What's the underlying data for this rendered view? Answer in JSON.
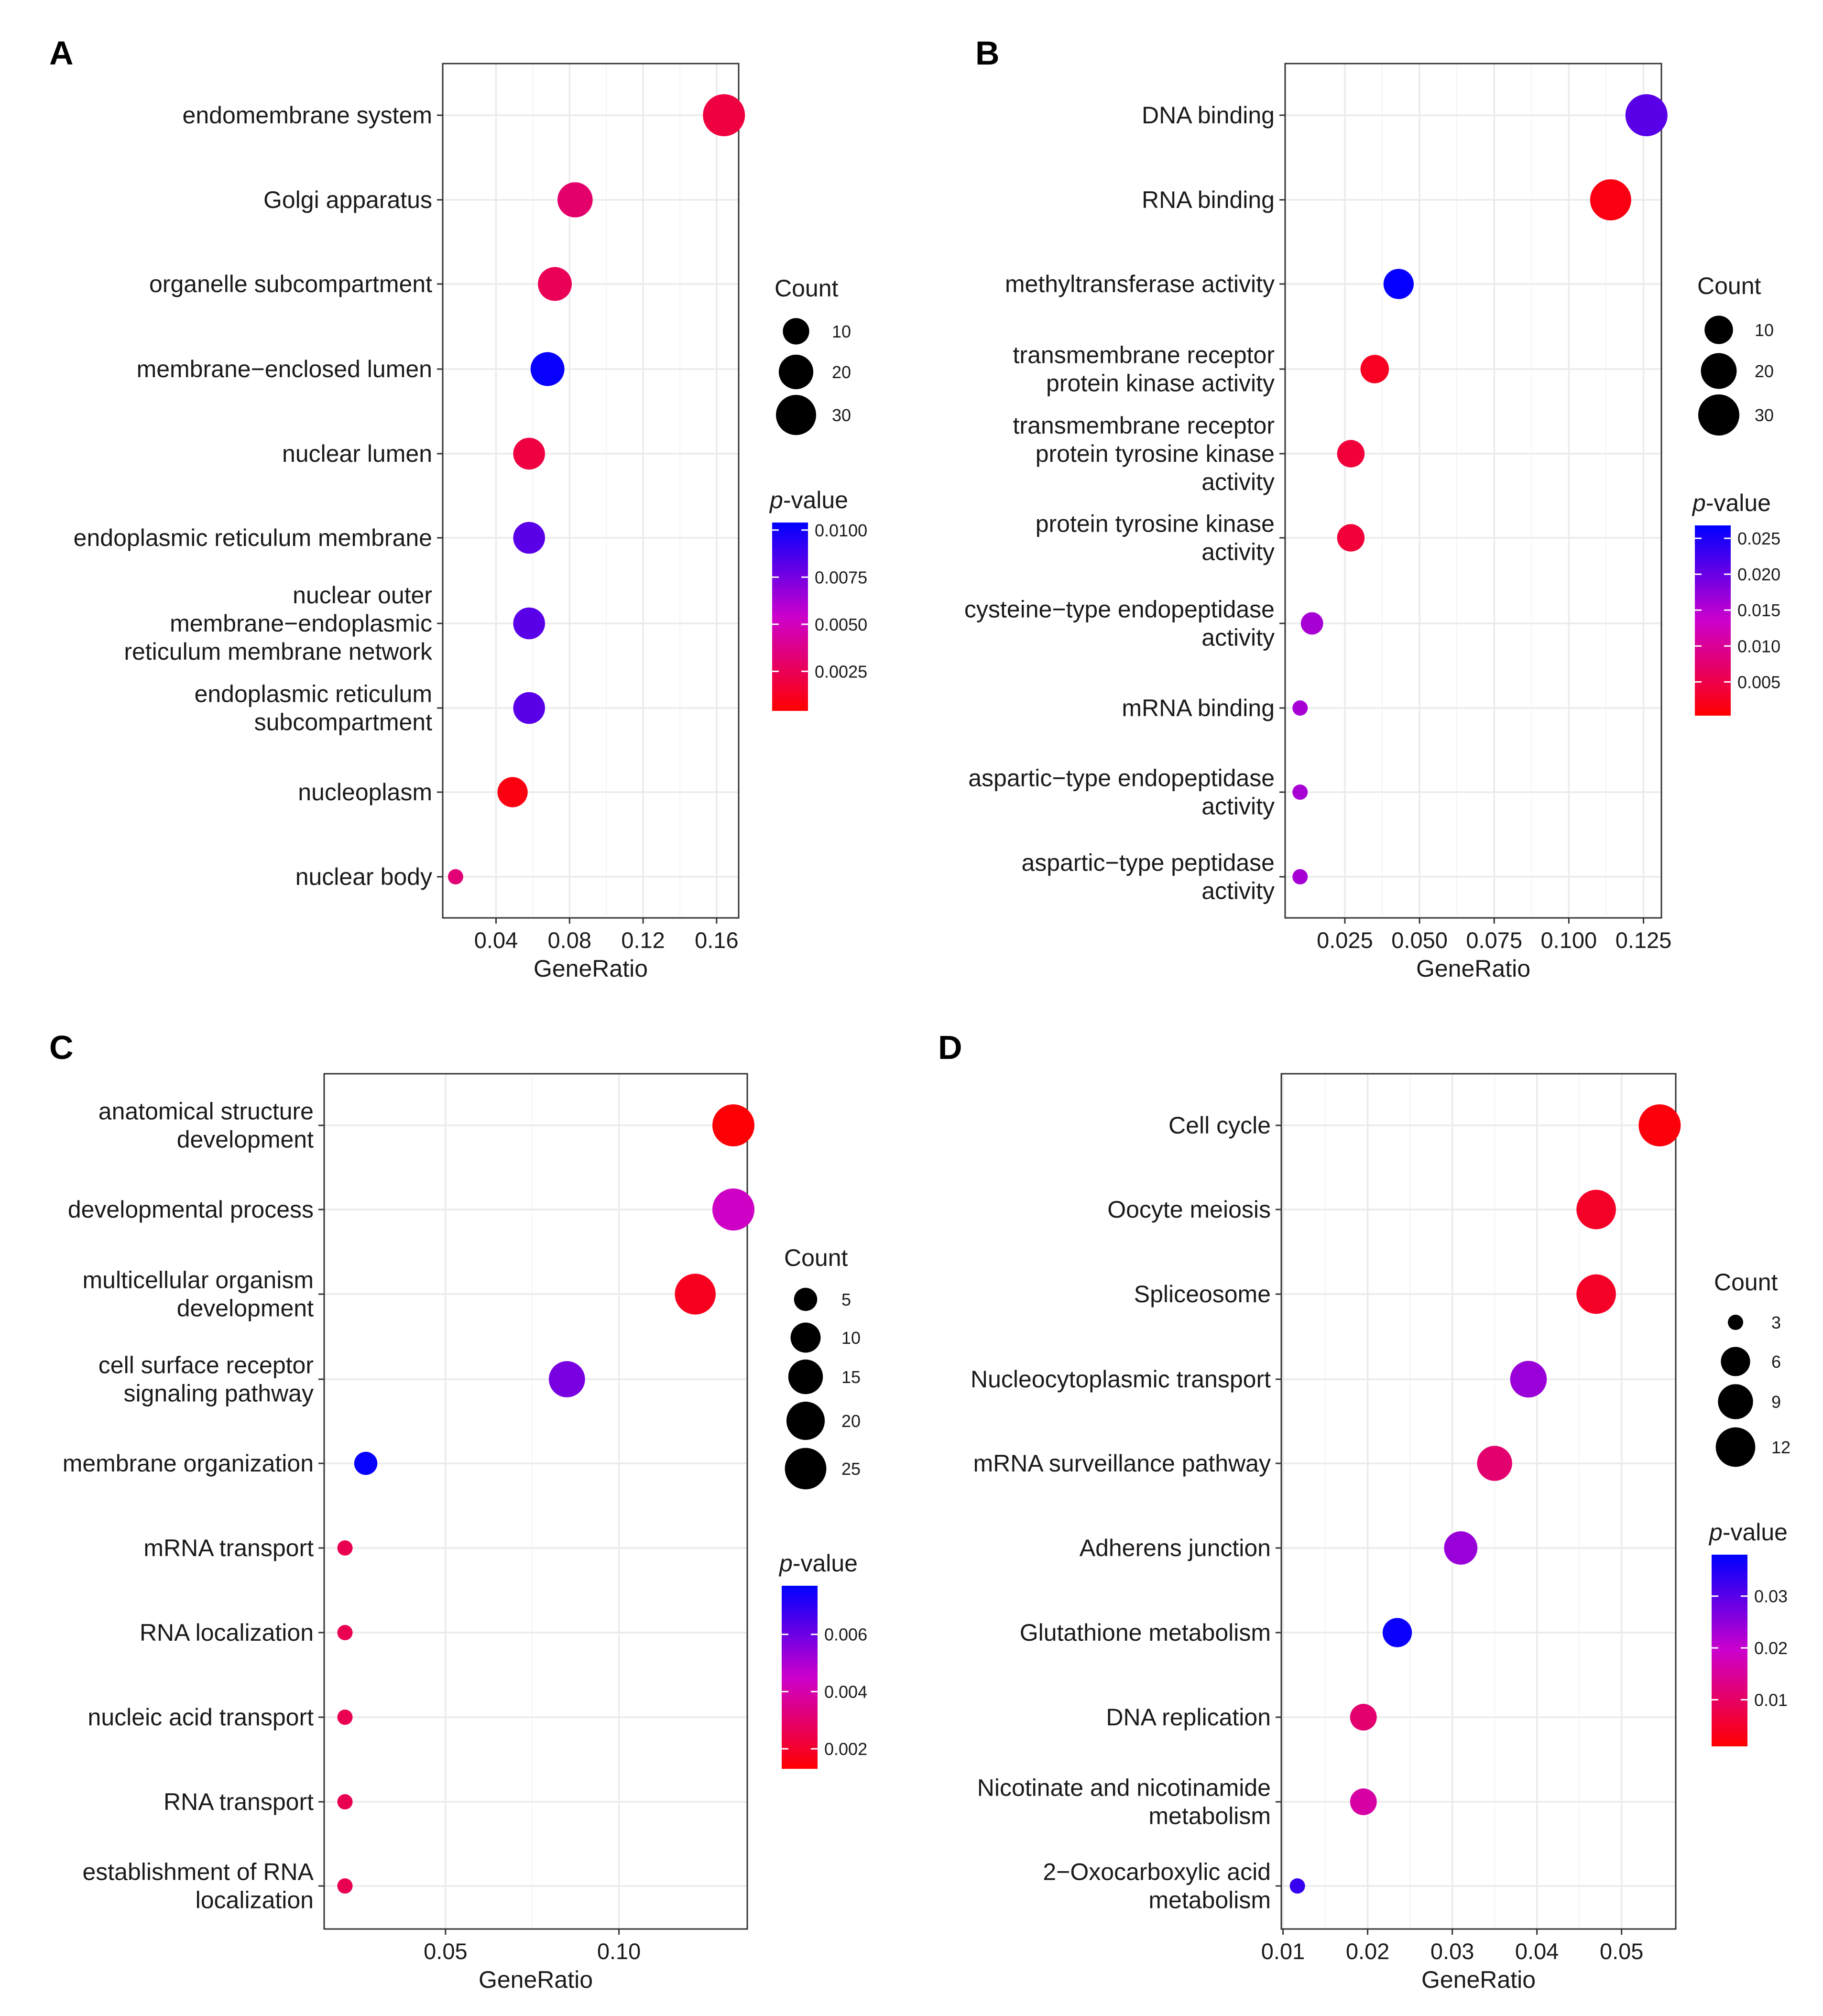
{
  "chart_data": [
    {
      "panel": "A",
      "type": "scatter",
      "xlabel": "GeneRatio",
      "xlim": [
        0.011,
        0.172
      ],
      "xticks": [
        0.04,
        0.08,
        0.12,
        0.16
      ],
      "xtick_labels": [
        "0.04",
        "0.08",
        "0.12",
        "0.16"
      ],
      "categories": [
        {
          "label": [
            "endomembrane system"
          ],
          "x": 0.164,
          "count": 34,
          "p": 0.002
        },
        {
          "label": [
            "Golgi apparatus"
          ],
          "x": 0.083,
          "count": 21,
          "p": 0.003
        },
        {
          "label": [
            "organelle subcompartment"
          ],
          "x": 0.072,
          "count": 19,
          "p": 0.0025
        },
        {
          "label": [
            "membrane−enclosed lumen"
          ],
          "x": 0.068,
          "count": 19,
          "p": 0.0102
        },
        {
          "label": [
            "nuclear lumen"
          ],
          "x": 0.058,
          "count": 16,
          "p": 0.002
        },
        {
          "label": [
            "endoplasmic reticulum membrane"
          ],
          "x": 0.058,
          "count": 16,
          "p": 0.0082
        },
        {
          "label": [
            "nuclear outer",
            "membrane−endoplasmic",
            "reticulum membrane network"
          ],
          "x": 0.058,
          "count": 16,
          "p": 0.0082
        },
        {
          "label": [
            "endoplasmic reticulum",
            "subcompartment"
          ],
          "x": 0.058,
          "count": 16,
          "p": 0.0082
        },
        {
          "label": [
            "nucleoplasm"
          ],
          "x": 0.049,
          "count": 14,
          "p": 0.0008
        },
        {
          "label": [
            "nuclear body"
          ],
          "x": 0.018,
          "count": 5,
          "p": 0.0033
        }
      ],
      "size_legend": {
        "title": "Count",
        "values": [
          10,
          20,
          30
        ]
      },
      "color_legend": {
        "title_italic": "p",
        "title_rest": "-value",
        "range": [
          0.0004,
          0.0104
        ],
        "ticks": [
          0.0025,
          0.005,
          0.0075,
          0.01
        ],
        "tick_labels": [
          "0.0025",
          "0.0050",
          "0.0075",
          "0.0100"
        ]
      },
      "size_range": [
        5,
        34
      ]
    },
    {
      "panel": "B",
      "type": "scatter",
      "xlabel": "GeneRatio",
      "xlim": [
        0.005,
        0.131
      ],
      "xticks": [
        0.025,
        0.05,
        0.075,
        0.1,
        0.125
      ],
      "xtick_labels": [
        "0.025",
        "0.050",
        "0.075",
        "0.100",
        "0.125"
      ],
      "categories": [
        {
          "label": [
            "DNA binding"
          ],
          "x": 0.126,
          "count": 32,
          "p": 0.021
        },
        {
          "label": [
            "RNA binding"
          ],
          "x": 0.114,
          "count": 30,
          "p": 0.0015
        },
        {
          "label": [
            "methyltransferase activity"
          ],
          "x": 0.043,
          "count": 12,
          "p": 0.0265
        },
        {
          "label": [
            "transmembrane receptor",
            "protein kinase activity"
          ],
          "x": 0.035,
          "count": 10,
          "p": 0.0025
        },
        {
          "label": [
            "transmembrane receptor",
            "protein tyrosine kinase",
            "activity"
          ],
          "x": 0.027,
          "count": 9,
          "p": 0.004
        },
        {
          "label": [
            "protein tyrosine kinase",
            "activity"
          ],
          "x": 0.027,
          "count": 9,
          "p": 0.004
        },
        {
          "label": [
            "cysteine−type endopeptidase",
            "activity"
          ],
          "x": 0.014,
          "count": 5,
          "p": 0.016
        },
        {
          "label": [
            "mRNA binding"
          ],
          "x": 0.01,
          "count": 3,
          "p": 0.016
        },
        {
          "label": [
            "aspartic−type endopeptidase",
            "activity"
          ],
          "x": 0.01,
          "count": 3,
          "p": 0.016
        },
        {
          "label": [
            "aspartic−type peptidase",
            "activity"
          ],
          "x": 0.01,
          "count": 3,
          "p": 0.016
        }
      ],
      "size_legend": {
        "title": "Count",
        "values": [
          10,
          20,
          30
        ]
      },
      "color_legend": {
        "title_italic": "p",
        "title_rest": "-value",
        "range": [
          0.0003,
          0.0268
        ],
        "ticks": [
          0.005,
          0.01,
          0.015,
          0.02,
          0.025
        ],
        "tick_labels": [
          "0.005",
          "0.010",
          "0.015",
          "0.020",
          "0.025"
        ]
      },
      "size_range": [
        3,
        32
      ]
    },
    {
      "panel": "C",
      "type": "scatter",
      "xlabel": "GeneRatio",
      "xlim": [
        0.015,
        0.137
      ],
      "xticks": [
        0.05,
        0.1
      ],
      "xtick_labels": [
        "0.05",
        "0.10"
      ],
      "categories": [
        {
          "label": [
            "anatomical structure",
            "development"
          ],
          "x": 0.133,
          "count": 26,
          "p": 0.0014
        },
        {
          "label": [
            "developmental process"
          ],
          "x": 0.133,
          "count": 26,
          "p": 0.0044
        },
        {
          "label": [
            "multicellular organism",
            "development"
          ],
          "x": 0.122,
          "count": 24,
          "p": 0.0018
        },
        {
          "label": [
            "cell surface receptor",
            "signaling pathway"
          ],
          "x": 0.085,
          "count": 17,
          "p": 0.0058
        },
        {
          "label": [
            "membrane organization"
          ],
          "x": 0.027,
          "count": 5,
          "p": 0.0076
        },
        {
          "label": [
            "mRNA transport"
          ],
          "x": 0.021,
          "count": 3,
          "p": 0.0026
        },
        {
          "label": [
            "RNA localization"
          ],
          "x": 0.021,
          "count": 3,
          "p": 0.0026
        },
        {
          "label": [
            "nucleic acid transport"
          ],
          "x": 0.021,
          "count": 3,
          "p": 0.0026
        },
        {
          "label": [
            "RNA transport"
          ],
          "x": 0.021,
          "count": 3,
          "p": 0.0026
        },
        {
          "label": [
            "establishment of RNA",
            "localization"
          ],
          "x": 0.021,
          "count": 3,
          "p": 0.0026
        }
      ],
      "size_legend": {
        "title": "Count",
        "values": [
          5,
          10,
          15,
          20,
          25
        ]
      },
      "color_legend": {
        "title_italic": "p",
        "title_rest": "-value",
        "range": [
          0.0013,
          0.0077
        ],
        "ticks": [
          0.002,
          0.004,
          0.006
        ],
        "tick_labels": [
          "0.002",
          "0.004",
          "0.006"
        ]
      },
      "size_range": [
        3,
        26
      ]
    },
    {
      "panel": "D",
      "type": "scatter",
      "xlabel": "GeneRatio",
      "xlim": [
        0.0098,
        0.0564
      ],
      "xticks": [
        0.01,
        0.02,
        0.03,
        0.04,
        0.05
      ],
      "xtick_labels": [
        "0.01",
        "0.02",
        "0.03",
        "0.04",
        "0.05"
      ],
      "categories": [
        {
          "label": [
            "Cell cycle"
          ],
          "x": 0.0545,
          "count": 14,
          "p": 0.002
        },
        {
          "label": [
            "Oocyte meiosis"
          ],
          "x": 0.047,
          "count": 12,
          "p": 0.0045
        },
        {
          "label": [
            "Spliceosome"
          ],
          "x": 0.047,
          "count": 12,
          "p": 0.0045
        },
        {
          "label": [
            "Nucleocytoplasmic transport"
          ],
          "x": 0.039,
          "count": 10,
          "p": 0.024
        },
        {
          "label": [
            "mRNA surveillance pathway"
          ],
          "x": 0.035,
          "count": 9,
          "p": 0.011
        },
        {
          "label": [
            "Adherens junction"
          ],
          "x": 0.031,
          "count": 8,
          "p": 0.024
        },
        {
          "label": [
            "Glutathione metabolism"
          ],
          "x": 0.0235,
          "count": 6,
          "p": 0.037
        },
        {
          "label": [
            "DNA replication"
          ],
          "x": 0.0195,
          "count": 5,
          "p": 0.011
        },
        {
          "label": [
            "Nicotinate and nicotinamide",
            "metabolism"
          ],
          "x": 0.0195,
          "count": 5,
          "p": 0.016
        },
        {
          "label": [
            "2−Oxocarboxylic acid",
            "metabolism"
          ],
          "x": 0.0117,
          "count": 3,
          "p": 0.033
        }
      ],
      "size_legend": {
        "title": "Count",
        "values": [
          3,
          6,
          9,
          12
        ]
      },
      "color_legend": {
        "title_italic": "p",
        "title_rest": "-value",
        "range": [
          0.001,
          0.038
        ],
        "ticks": [
          0.01,
          0.02,
          0.03
        ],
        "tick_labels": [
          "0.01",
          "0.02",
          "0.03"
        ]
      },
      "size_range": [
        3,
        14
      ]
    }
  ],
  "colors": {
    "low_p": "#ff0000",
    "mid_p": "#cc00cc",
    "high_p": "#0000ff",
    "grid": "#ebebeb",
    "frame": "#333333",
    "text": "#1a1a1a",
    "legend_dot": "#000000"
  }
}
